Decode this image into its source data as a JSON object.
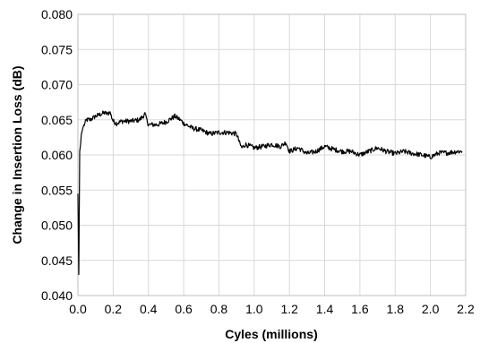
{
  "chart_data": {
    "type": "line",
    "title": "",
    "xlabel": "Cyles (millions)",
    "ylabel": "Change in Insertion Loss (dB)",
    "xlim": [
      0.0,
      2.2
    ],
    "ylim": [
      0.04,
      0.08
    ],
    "x_ticks": [
      "0.0",
      "0.2",
      "0.4",
      "0.6",
      "0.8",
      "1.0",
      "1.2",
      "1.4",
      "1.6",
      "1.8",
      "2.0",
      "2.2"
    ],
    "y_ticks": [
      "0.040",
      "0.045",
      "0.050",
      "0.055",
      "0.060",
      "0.065",
      "0.070",
      "0.075",
      "0.080"
    ],
    "grid": true,
    "legend": "none",
    "line_color": "#000000",
    "grid_color": "#d9d9d9",
    "series": [
      {
        "x": [
          0.0,
          0.005,
          0.01,
          0.015,
          0.02,
          0.03,
          0.04,
          0.05,
          0.07,
          0.1,
          0.13,
          0.15,
          0.17,
          0.18,
          0.2,
          0.22,
          0.25,
          0.3,
          0.35,
          0.38,
          0.4,
          0.45,
          0.5,
          0.55,
          0.58,
          0.6,
          0.65,
          0.7,
          0.75,
          0.8,
          0.85,
          0.9,
          0.92,
          0.93,
          0.95,
          1.0,
          1.05,
          1.1,
          1.15,
          1.18,
          1.2,
          1.25,
          1.3,
          1.35,
          1.4,
          1.45,
          1.5,
          1.55,
          1.6,
          1.65,
          1.7,
          1.75,
          1.8,
          1.85,
          1.9,
          1.95,
          2.0,
          2.05,
          2.1,
          2.15,
          2.18
        ],
        "y": [
          0.0545,
          0.043,
          0.0605,
          0.0615,
          0.063,
          0.064,
          0.0645,
          0.065,
          0.065,
          0.0655,
          0.0658,
          0.066,
          0.0658,
          0.0662,
          0.0648,
          0.0645,
          0.0648,
          0.0648,
          0.065,
          0.0658,
          0.0643,
          0.0643,
          0.0647,
          0.0655,
          0.065,
          0.0645,
          0.0638,
          0.0635,
          0.063,
          0.0632,
          0.0632,
          0.063,
          0.0615,
          0.061,
          0.0615,
          0.061,
          0.0612,
          0.0615,
          0.0612,
          0.0618,
          0.0605,
          0.061,
          0.0602,
          0.0605,
          0.0612,
          0.0608,
          0.0605,
          0.0605,
          0.06,
          0.0605,
          0.061,
          0.0605,
          0.0602,
          0.0605,
          0.0602,
          0.06,
          0.0597,
          0.0603,
          0.0603,
          0.0605,
          0.0605
        ]
      }
    ]
  }
}
